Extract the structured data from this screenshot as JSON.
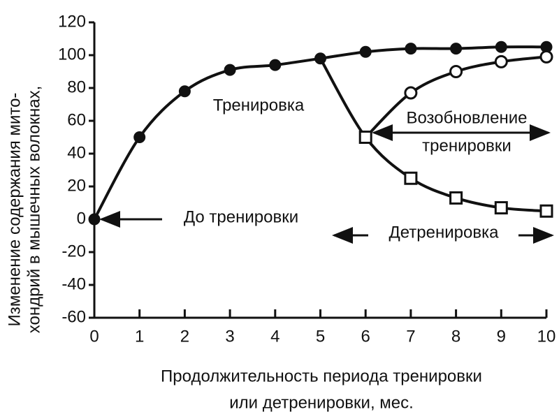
{
  "chart_data": {
    "type": "line",
    "y_label": [
      "Изменение содержания мито-",
      "хондрий в мышечных волокнах,"
    ],
    "x_label": [
      "Продолжительность периода тренировки",
      "или детренировки, мес."
    ],
    "x": [
      0,
      1,
      2,
      3,
      4,
      5,
      6,
      7,
      8,
      9,
      10
    ],
    "xlim": [
      0,
      10
    ],
    "xticks": [
      0,
      1,
      2,
      3,
      4,
      5,
      6,
      7,
      8,
      9,
      10
    ],
    "ylim": [
      -60,
      120
    ],
    "yticks": [
      -60,
      -40,
      -20,
      0,
      20,
      40,
      60,
      80,
      100,
      120
    ],
    "grid": false,
    "series": [
      {
        "color": "#111111",
        "marker": "filled-circle",
        "values": [
          0,
          50,
          78,
          91,
          94,
          98,
          102,
          104,
          104,
          105,
          105
        ]
      },
      {
        "color": "#111111",
        "marker": "open-square",
        "values": [
          null,
          null,
          null,
          null,
          null,
          98,
          50,
          25,
          13,
          7,
          5
        ]
      },
      {
        "color": "#111111",
        "marker": "open-circle",
        "values": [
          null,
          null,
          null,
          null,
          null,
          null,
          50,
          77,
          90,
          96,
          99
        ]
      }
    ],
    "annotations": [
      "Тренировка",
      "Возобновление",
      "тренировки",
      "До тренировки",
      "Детренировка"
    ]
  }
}
